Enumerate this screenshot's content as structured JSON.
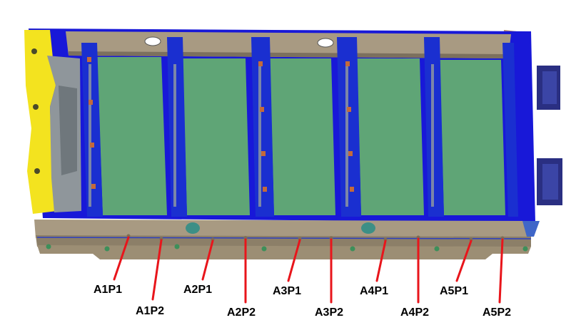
{
  "labels": {
    "a1p1": "A1P1",
    "a1p2": "A1P2",
    "a2p1": "A2P1",
    "a2p2": "A2P2",
    "a3p1": "A3P1",
    "a3p2": "A3P2",
    "a4p1": "A4P1",
    "a4p2": "A4P2",
    "a5p1": "A5P1",
    "a5p2": "A5P2"
  },
  "colors": {
    "frame_blue": "#1818d8",
    "cell_green": "#5fa576",
    "rail_tan": "#a89a82",
    "end_yellow": "#f3e31f",
    "end_grey": "#8f969b",
    "pointer_red": "#e8151b",
    "side_panel_brown": "#b88a66",
    "bracket_navy": "#2a2f82"
  }
}
